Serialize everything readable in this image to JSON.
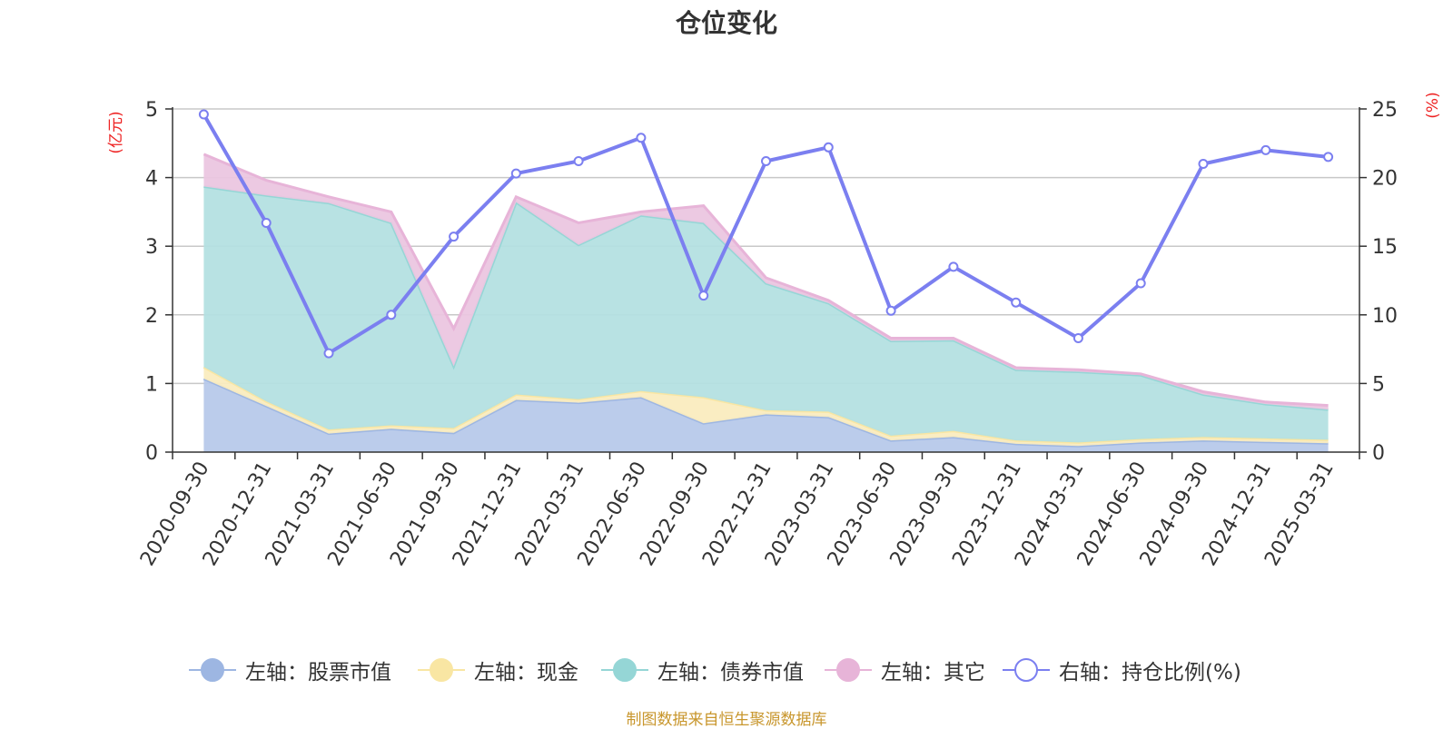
{
  "title": "仓位变化",
  "source_note": "制图数据来自恒生聚源数据库",
  "chart_data": {
    "type": "area",
    "stacked": true,
    "title": "仓位变化",
    "categories": [
      "2020-09-30",
      "2020-12-31",
      "2021-03-31",
      "2021-06-30",
      "2021-09-30",
      "2021-12-31",
      "2022-03-31",
      "2022-06-30",
      "2022-09-30",
      "2022-12-31",
      "2023-03-31",
      "2023-06-30",
      "2023-09-30",
      "2023-12-31",
      "2024-03-31",
      "2024-06-30",
      "2024-09-30",
      "2024-12-31",
      "2025-03-31"
    ],
    "left_axis": {
      "label": "(亿元)",
      "min": 0,
      "max": 5,
      "ticks": [
        "0",
        "1",
        "2",
        "3",
        "4",
        "5"
      ]
    },
    "right_axis": {
      "label": "(%)",
      "min": 0,
      "max": 25,
      "ticks": [
        "0",
        "5",
        "10",
        "15",
        "20",
        "25"
      ]
    },
    "series": [
      {
        "name": "左轴：股票市值",
        "axis": "left",
        "kind": "area",
        "color": "#9db6e2",
        "fill": "#b7c9ea",
        "values": [
          1.07,
          0.67,
          0.27,
          0.34,
          0.28,
          0.76,
          0.72,
          0.8,
          0.42,
          0.55,
          0.51,
          0.17,
          0.22,
          0.12,
          0.09,
          0.14,
          0.17,
          0.15,
          0.13
        ]
      },
      {
        "name": "左轴：现金",
        "axis": "left",
        "kind": "area",
        "color": "#f9e6a3",
        "fill": "#faecbf",
        "values": [
          0.17,
          0.07,
          0.06,
          0.05,
          0.07,
          0.08,
          0.05,
          0.09,
          0.38,
          0.06,
          0.08,
          0.07,
          0.09,
          0.05,
          0.05,
          0.05,
          0.05,
          0.05,
          0.05
        ]
      },
      {
        "name": "左轴：债券市值",
        "axis": "left",
        "kind": "area",
        "color": "#95d6d6",
        "fill": "#b4e0e1",
        "values": [
          2.63,
          3.0,
          3.3,
          2.95,
          0.9,
          2.8,
          2.25,
          2.56,
          2.54,
          1.85,
          1.58,
          1.38,
          1.32,
          1.03,
          1.03,
          0.93,
          0.62,
          0.5,
          0.44
        ]
      },
      {
        "name": "左轴：其它",
        "axis": "left",
        "kind": "area",
        "color": "#e7b4d8",
        "fill": "#ebc6e0",
        "values": [
          0.47,
          0.22,
          0.09,
          0.16,
          0.55,
          0.08,
          0.32,
          0.05,
          0.25,
          0.08,
          0.04,
          0.04,
          0.03,
          0.03,
          0.03,
          0.02,
          0.04,
          0.03,
          0.06
        ]
      },
      {
        "name": "右轴：持仓比例(%)",
        "axis": "right",
        "kind": "line",
        "color": "#7b7ff0",
        "values": [
          24.6,
          16.7,
          7.2,
          10.0,
          15.7,
          20.3,
          21.2,
          22.9,
          11.4,
          21.2,
          22.2,
          10.3,
          13.5,
          10.9,
          8.3,
          12.3,
          21.0,
          22.0,
          21.5
        ]
      }
    ],
    "grid": true,
    "legend_position": "bottom"
  }
}
